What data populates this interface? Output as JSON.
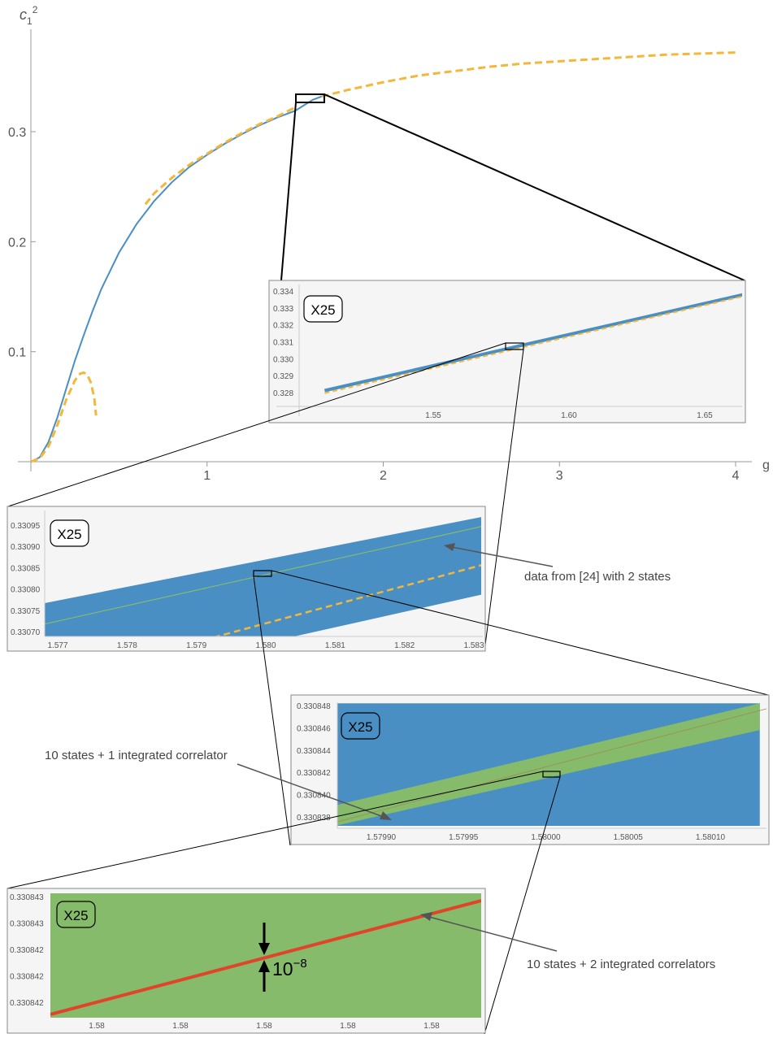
{
  "chart_data": [
    {
      "panel": "main",
      "type": "line",
      "xlabel": "g",
      "ylabel": "c",
      "ylabel_sub": "1",
      "ylabel_sup": "2",
      "xlim": [
        0,
        4.05
      ],
      "ylim": [
        -0.005,
        0.4
      ],
      "x_ticks": [
        "1",
        "2",
        "3",
        "4"
      ],
      "y_ticks": [
        "0.1",
        "0.2",
        "0.3"
      ],
      "series": [
        {
          "style": "solid",
          "color": "#4a8fc4",
          "x": [
            0.0,
            0.05,
            0.1,
            0.15,
            0.2,
            0.25,
            0.3,
            0.35,
            0.4,
            0.5,
            0.6,
            0.7,
            0.8,
            0.9,
            1.0,
            1.1,
            1.2,
            1.3,
            1.4,
            1.5,
            1.55,
            1.6,
            1.65
          ],
          "y": [
            0.0,
            0.004,
            0.018,
            0.04,
            0.066,
            0.092,
            0.115,
            0.137,
            0.157,
            0.19,
            0.216,
            0.237,
            0.254,
            0.268,
            0.279,
            0.289,
            0.298,
            0.306,
            0.313,
            0.319,
            0.324,
            0.329,
            0.332
          ]
        },
        {
          "style": "dashed",
          "color": "#f3b73a",
          "x": [
            1.65,
            1.8,
            2.0,
            2.2,
            2.4,
            2.6,
            2.8,
            3.0,
            3.2,
            3.4,
            3.6,
            3.8,
            4.0
          ],
          "y": [
            0.332,
            0.338,
            0.345,
            0.351,
            0.355,
            0.359,
            0.362,
            0.364,
            0.366,
            0.368,
            0.37,
            0.371,
            0.372
          ]
        },
        {
          "style": "dashed",
          "color": "#f3b73a",
          "x": [
            0.65,
            0.7,
            0.8,
            0.9,
            1.0,
            1.1,
            1.2,
            1.3,
            1.4,
            1.5
          ],
          "y": [
            0.234,
            0.244,
            0.258,
            0.27,
            0.28,
            0.29,
            0.299,
            0.307,
            0.314,
            0.322
          ]
        },
        {
          "style": "dashed",
          "color": "#f3b73a",
          "x": [
            0.0,
            0.05,
            0.1,
            0.15,
            0.2,
            0.25,
            0.28,
            0.3,
            0.32,
            0.34,
            0.36,
            0.37
          ],
          "y": [
            0.0,
            0.003,
            0.014,
            0.033,
            0.056,
            0.074,
            0.08,
            0.081,
            0.079,
            0.072,
            0.058,
            0.042
          ]
        }
      ]
    },
    {
      "panel": "inset-1",
      "type": "line",
      "badge": "X25",
      "xlim": [
        1.51,
        1.67
      ],
      "ylim": [
        0.3273,
        0.3345
      ],
      "x_ticks": [
        "1.55",
        "1.60",
        "1.65"
      ],
      "x_tick_values": [
        1.55,
        1.6,
        1.65
      ],
      "y_ticks": [
        "0.328",
        "0.329",
        "0.330",
        "0.331",
        "0.332",
        "0.333",
        "0.334"
      ],
      "series": [
        {
          "style": "band",
          "color": "#4a8fc4",
          "x": [
            1.51,
            1.664
          ],
          "y": [
            0.32812,
            0.33378
          ]
        },
        {
          "style": "dashed",
          "color": "#f3b73a",
          "x": [
            1.51,
            1.664
          ],
          "y": [
            0.32797,
            0.33368
          ]
        }
      ]
    },
    {
      "panel": "inset-2",
      "type": "line",
      "badge": "X25",
      "xlim": [
        1.5766,
        1.5834
      ],
      "ylim": [
        0.33068,
        0.33098
      ],
      "x_ticks": [
        "1.577",
        "1.578",
        "1.579",
        "1.580",
        "1.581",
        "1.582",
        "1.583"
      ],
      "y_ticks": [
        "0.33070",
        "0.33075",
        "0.33080",
        "0.33085",
        "0.33090",
        "0.33095"
      ],
      "annotation": "data from [24] with 2 states",
      "series": [
        {
          "style": "band",
          "color": "#4a8fc4",
          "x": [
            1.5766,
            1.5832
          ],
          "y_low": [
            0.33055,
            0.33079
          ],
          "y_high": [
            0.33076,
            0.330972
          ]
        },
        {
          "style": "solid",
          "color": "#8cc063",
          "x": [
            1.5766,
            1.5832
          ],
          "y": [
            0.33071,
            0.33095
          ]
        },
        {
          "style": "dashed",
          "color": "#f3b73a",
          "x": [
            1.5766,
            1.5832
          ],
          "y": [
            0.33057,
            0.33086
          ]
        }
      ]
    },
    {
      "panel": "inset-3",
      "type": "line",
      "badge": "X25",
      "xlim": [
        1.57986,
        1.58013
      ],
      "ylim": [
        0.3308372,
        0.3308482
      ],
      "x_ticks": [
        "1.57990",
        "1.57995",
        "1.58000",
        "1.58005",
        "1.58010"
      ],
      "y_ticks": [
        "0.330838",
        "0.330840",
        "0.330842",
        "0.330844",
        "0.330846",
        "0.330848"
      ],
      "annotation": "10 states + 1 integrated correlator",
      "series": [
        {
          "style": "band",
          "color": "#4a8fc4",
          "x": [
            1.57986,
            1.58013
          ],
          "y_low": [
            0.3308372,
            0.3308372
          ],
          "y_high": [
            0.3308482,
            0.3308482
          ]
        },
        {
          "style": "band",
          "color": "#85bb6a",
          "x": [
            1.57986,
            1.58013
          ],
          "y_low": [
            0.3308368,
            0.3308458
          ],
          "y_high": [
            0.3308386,
            0.3308482
          ]
        }
      ]
    },
    {
      "panel": "inset-4",
      "type": "line",
      "badge": "X25",
      "x_ticks": [
        "1.58",
        "1.58",
        "1.58",
        "1.58",
        "1.58"
      ],
      "y_ticks": [
        "0.330843",
        "0.330843",
        "0.330842",
        "0.330842",
        "0.330842"
      ],
      "annotation": "10 states + 2 integrated correlators",
      "width_label": "10",
      "width_label_sup": "−8",
      "series": [
        {
          "style": "band",
          "color": "#85bb6a"
        },
        {
          "style": "solid",
          "color": "#e0452b"
        }
      ]
    }
  ]
}
